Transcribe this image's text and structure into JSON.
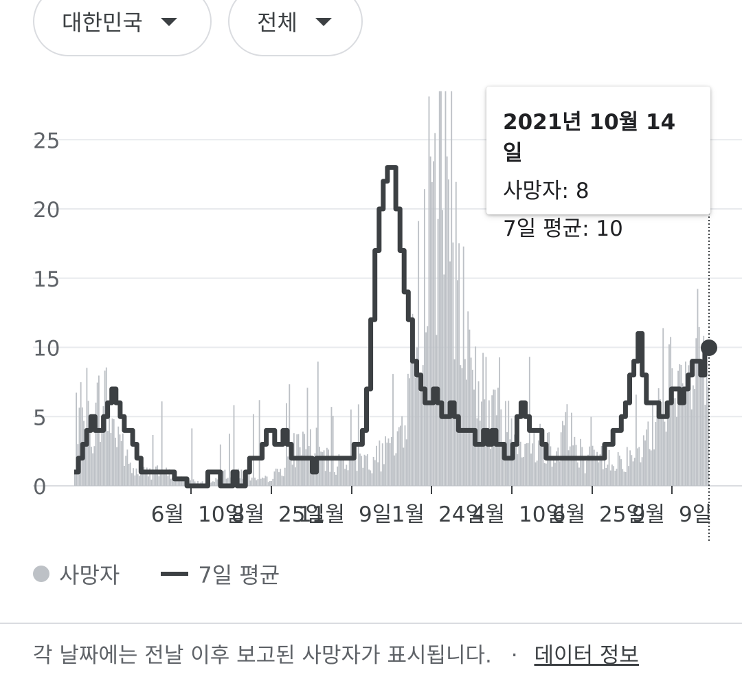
{
  "filters": {
    "region": "대한민국",
    "scope": "전체"
  },
  "tooltip": {
    "date": "2021년 10월 14일",
    "deaths": "사망자: 8",
    "avg": "7일 평균: 10"
  },
  "legend": {
    "deaths": "사망자",
    "avg": "7일 평균"
  },
  "footer": {
    "note": "각 날짜에는 전날 이후 보고된 사망자가 표시됩니다.",
    "separator": "·",
    "link": "데이터 정보"
  },
  "colors": {
    "bars": "#bdc1c6",
    "line": "#3c4043",
    "grid": "#e8eaed"
  },
  "chart_data": {
    "type": "bar",
    "title": "",
    "xlabel": "",
    "ylabel": "",
    "ylim": [
      0,
      28
    ],
    "y_ticks": [
      0,
      5,
      10,
      15,
      20,
      25
    ],
    "x_tick_labels": [
      "6월",
      "10일",
      "8월",
      "25일",
      "11월",
      "9일",
      "1월",
      "24일",
      "4월",
      "10일",
      "6월",
      "25일",
      "9월",
      "9일"
    ],
    "legend_position": "bottom-left",
    "grid": true,
    "series": [
      {
        "name": "사망자",
        "type": "bar",
        "anchors": [
          [
            0,
            1
          ],
          [
            4,
            5
          ],
          [
            8,
            6
          ],
          [
            10,
            4
          ],
          [
            14,
            5
          ],
          [
            18,
            7
          ],
          [
            22,
            6
          ],
          [
            26,
            4
          ],
          [
            30,
            4
          ],
          [
            34,
            2
          ],
          [
            40,
            1
          ],
          [
            60,
            1
          ],
          [
            70,
            0.5
          ],
          [
            80,
            0.3
          ],
          [
            90,
            0.2
          ],
          [
            100,
            1
          ],
          [
            110,
            1
          ],
          [
            120,
            0.5
          ],
          [
            128,
            0.5
          ],
          [
            136,
            1
          ],
          [
            142,
            2
          ],
          [
            148,
            3
          ],
          [
            154,
            3.5
          ],
          [
            160,
            3
          ],
          [
            166,
            2
          ],
          [
            172,
            1.5
          ],
          [
            180,
            2
          ],
          [
            190,
            2
          ],
          [
            200,
            2
          ],
          [
            208,
            2.5
          ],
          [
            214,
            3
          ],
          [
            220,
            5
          ],
          [
            224,
            8
          ],
          [
            228,
            12
          ],
          [
            232,
            17
          ],
          [
            236,
            19
          ],
          [
            240,
            21
          ],
          [
            244,
            24
          ],
          [
            248,
            23
          ],
          [
            252,
            20
          ],
          [
            256,
            16
          ],
          [
            260,
            12
          ],
          [
            264,
            9
          ],
          [
            268,
            8
          ],
          [
            272,
            7
          ],
          [
            276,
            6
          ],
          [
            282,
            5
          ],
          [
            288,
            5
          ],
          [
            294,
            4
          ],
          [
            300,
            3.5
          ],
          [
            310,
            3.5
          ],
          [
            316,
            3
          ],
          [
            320,
            2.5
          ],
          [
            326,
            5
          ],
          [
            330,
            4
          ],
          [
            334,
            3
          ],
          [
            340,
            2
          ],
          [
            350,
            2
          ],
          [
            360,
            2
          ],
          [
            370,
            2
          ],
          [
            376,
            2
          ],
          [
            380,
            3
          ],
          [
            384,
            4
          ],
          [
            388,
            5
          ],
          [
            392,
            9
          ],
          [
            396,
            8
          ],
          [
            400,
            6
          ],
          [
            404,
            6
          ],
          [
            408,
            7
          ],
          [
            412,
            8
          ],
          [
            418,
            9
          ],
          [
            422,
            8
          ]
        ]
      },
      {
        "name": "7일 평균",
        "type": "line",
        "values": [
          1,
          2,
          3,
          4,
          5,
          4,
          4,
          5,
          6,
          7,
          6,
          5,
          4,
          4,
          3,
          2,
          1,
          1,
          1,
          1,
          1,
          1,
          1,
          1,
          0.5,
          0.5,
          0.5,
          0,
          0,
          0,
          0,
          0,
          1,
          1,
          1,
          0,
          0,
          0,
          1,
          0,
          0,
          1,
          2,
          2,
          2,
          3,
          4,
          4,
          3,
          3,
          4,
          3,
          2,
          2,
          2,
          2,
          2,
          1,
          2,
          2,
          2,
          2,
          2,
          2,
          2,
          2,
          2,
          3,
          3,
          4,
          7,
          12,
          17,
          20,
          22,
          23,
          23,
          20,
          17,
          14,
          12,
          9,
          8,
          7,
          6,
          6,
          7,
          6,
          5,
          5,
          6,
          5,
          4,
          4,
          4,
          4,
          3,
          3,
          4,
          3,
          4,
          3,
          3,
          2,
          2,
          3,
          5,
          6,
          5,
          4,
          4,
          4,
          3,
          2,
          2,
          2,
          2,
          2,
          2,
          2,
          2,
          2,
          2,
          2,
          2,
          2,
          2,
          3,
          3,
          4,
          4,
          5,
          6,
          8,
          9,
          11,
          8,
          6,
          6,
          6,
          5,
          5,
          6,
          7,
          7,
          6,
          7,
          8,
          9,
          9,
          8,
          10
        ]
      }
    ]
  }
}
